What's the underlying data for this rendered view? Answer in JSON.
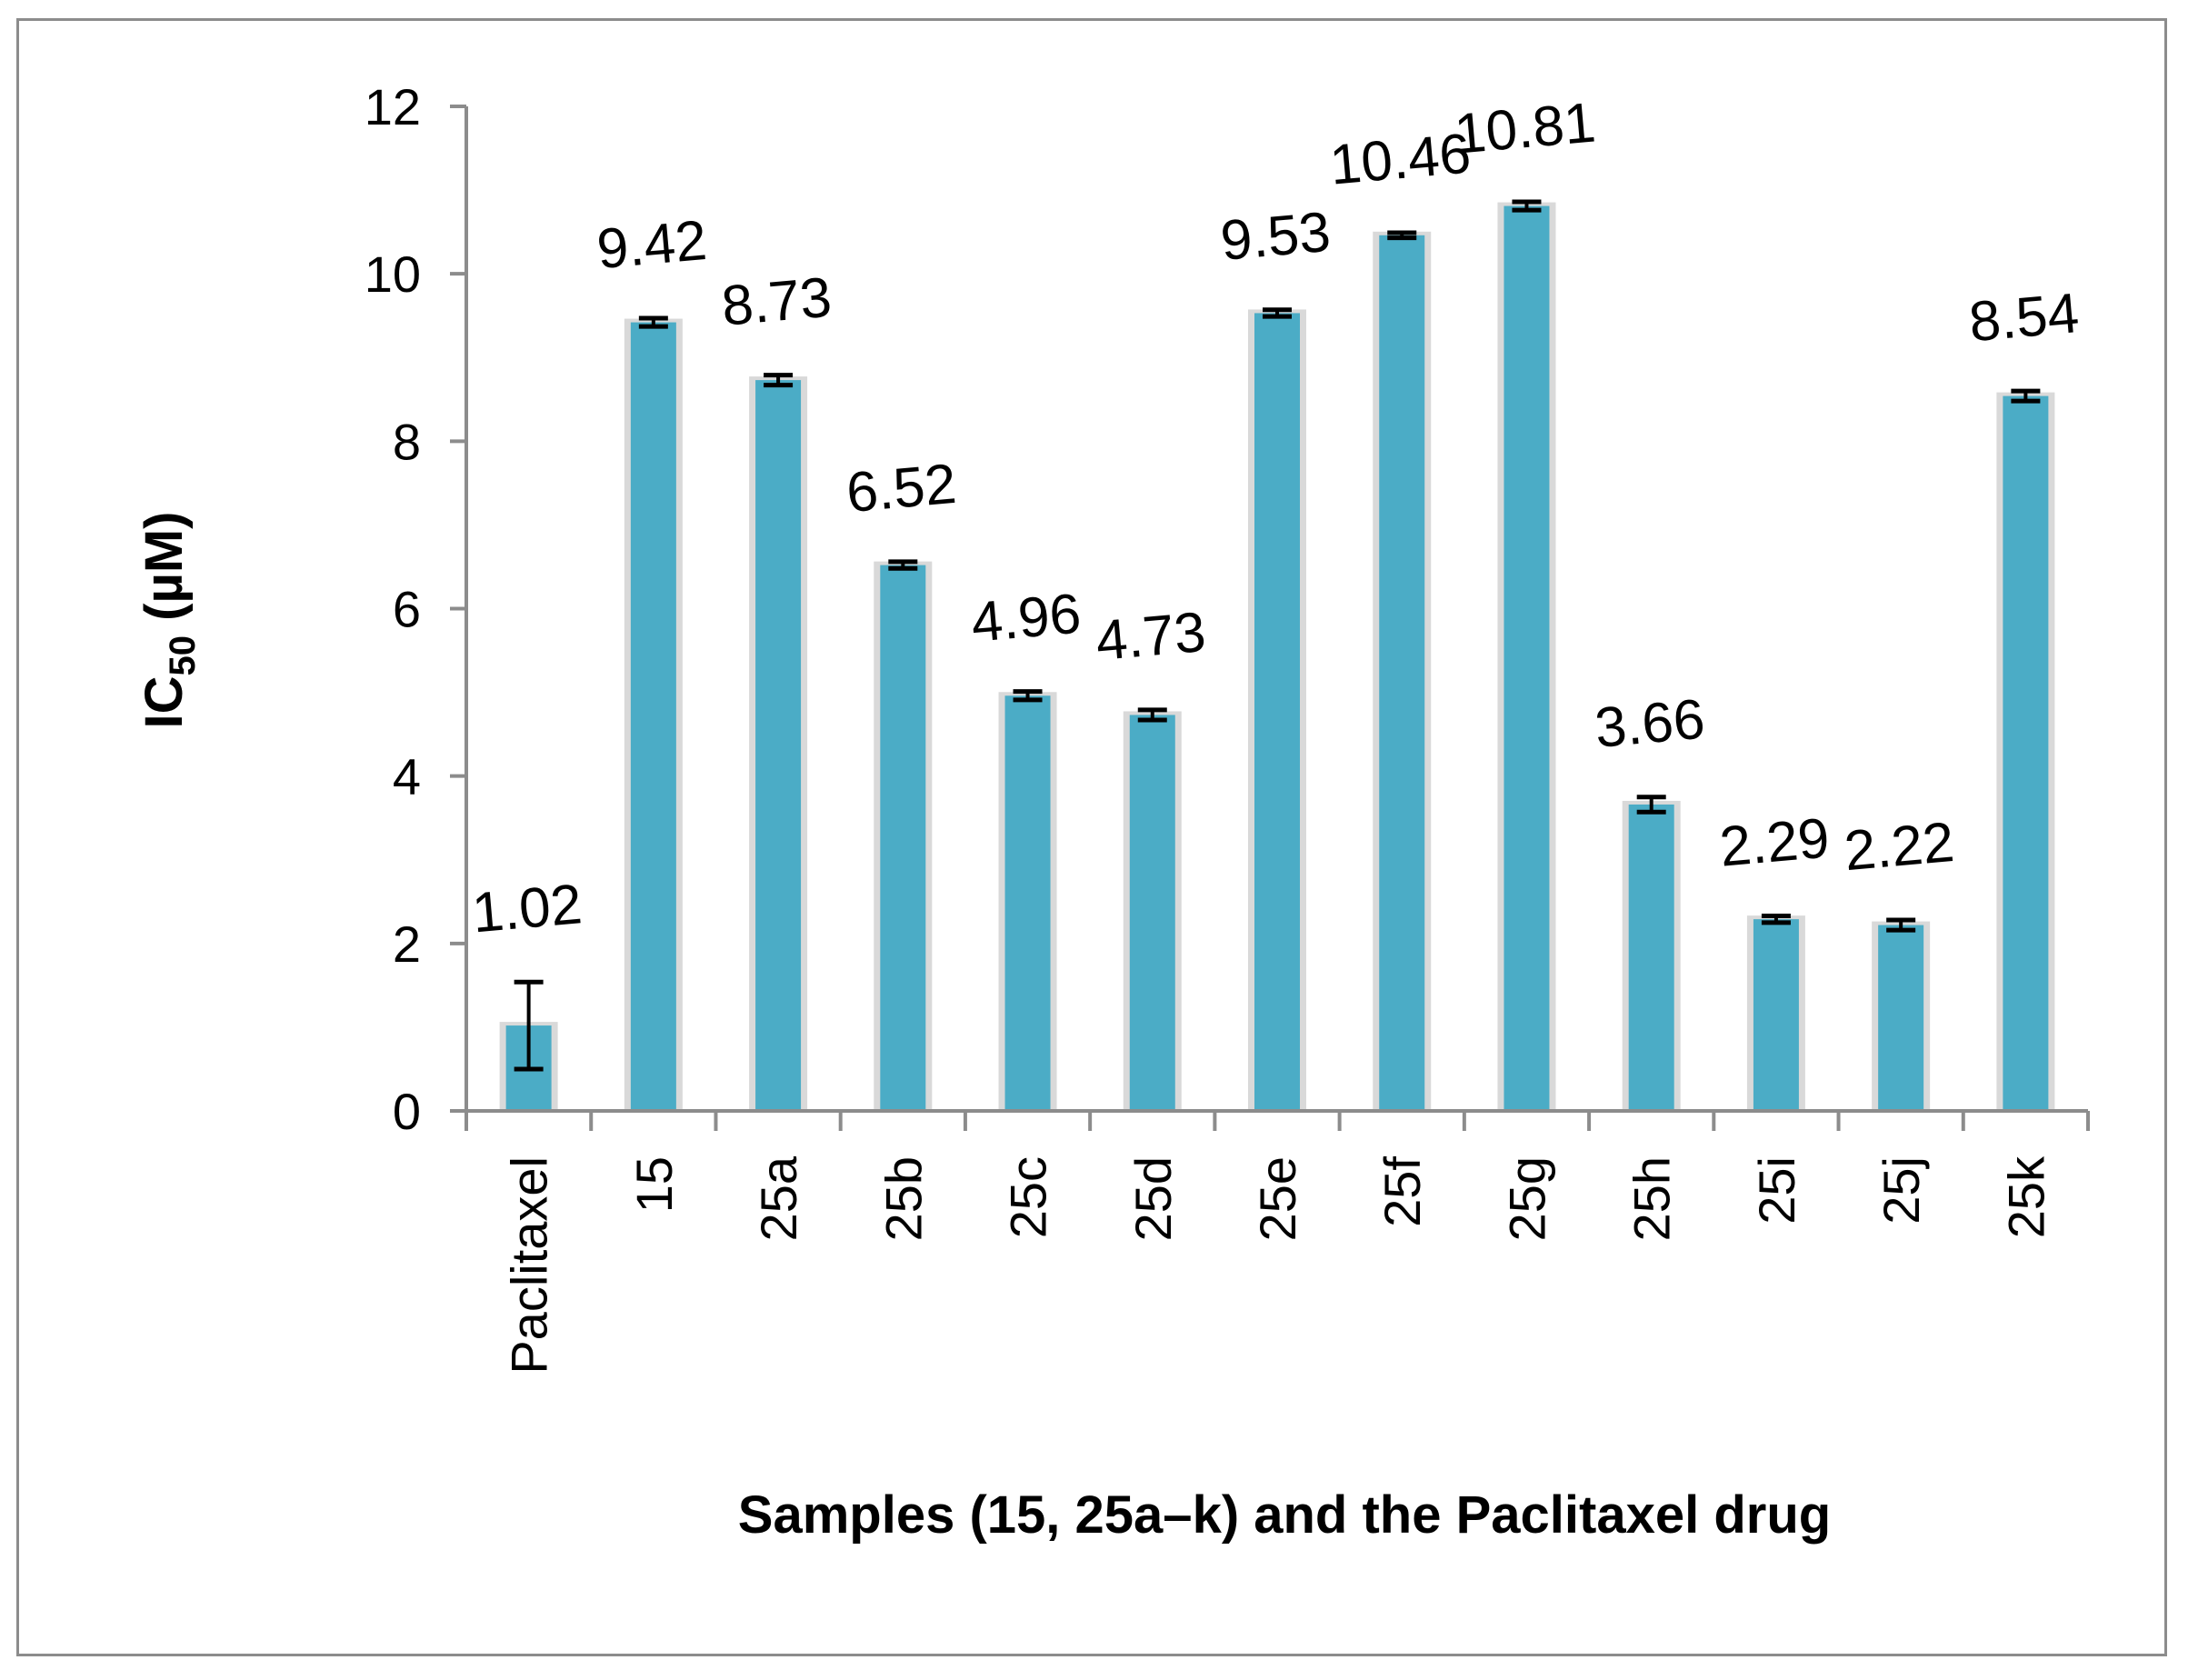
{
  "chart_data": {
    "type": "bar",
    "title": "",
    "xlabel": "Samples (15, 25a–k) and the Paclitaxel drug",
    "ylabel": {
      "main": "IC",
      "sub": "50",
      "unit": " (µM)"
    },
    "ylim": [
      0,
      12
    ],
    "yticks": [
      0,
      2,
      4,
      6,
      8,
      10,
      12
    ],
    "categories": [
      "Paclitaxel",
      "15",
      "25a",
      "25b",
      "25c",
      "25d",
      "25e",
      "25f",
      "25g",
      "25h",
      "25i",
      "25j",
      "25k"
    ],
    "values": [
      1.02,
      9.42,
      8.73,
      6.52,
      4.96,
      4.73,
      9.53,
      10.46,
      10.81,
      3.66,
      2.29,
      2.22,
      8.54
    ],
    "value_labels": [
      "1.02",
      "9.42",
      "8.73",
      "6.52",
      "4.96",
      "4.73",
      "9.53",
      "10.46",
      "10.81",
      "3.66",
      "2.29",
      "2.22",
      "8.54"
    ],
    "errors": [
      0.52,
      0.05,
      0.06,
      0.04,
      0.05,
      0.06,
      0.04,
      0.03,
      0.05,
      0.09,
      0.04,
      0.06,
      0.06
    ],
    "legend": "none",
    "grid": false,
    "colors": {
      "bar": "#4bacc6",
      "bar_shadow": "#d9d9d9",
      "axis": "#8c8c8c",
      "error": "#000000"
    }
  }
}
